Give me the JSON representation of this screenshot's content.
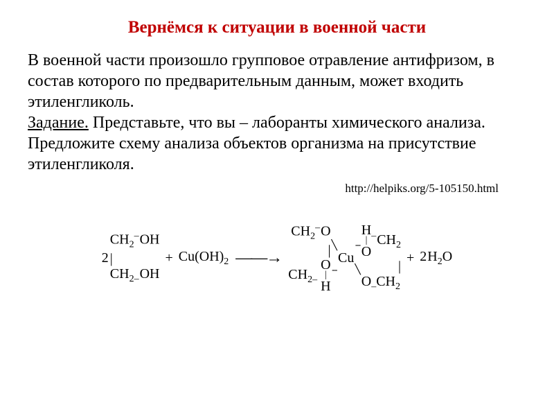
{
  "colors": {
    "title": "#c00000",
    "body": "#000000",
    "background": "#ffffff"
  },
  "fonts": {
    "title_size_pt": 25,
    "body_size_pt": 24,
    "url_size_pt": 17,
    "reaction_size_pt": 20,
    "family": "Times New Roman"
  },
  "title": "Вернёмся к ситуации в военной части",
  "paragraph": {
    "intro": "В военной части произошло групповое отравление антифризом, в состав которого по предварительным данным, может входить этиленгликоль.",
    "task_label": "Задание.",
    "task_text": " Представьте, что вы – лаборанты химического анализа. Предложите схему анализа объектов  организма на присутствие этиленгликоля."
  },
  "url": "http://helpiks.org/5-105150.html",
  "reaction": {
    "type": "chemical-equation",
    "coef_left": "2",
    "glycol_top": "CH",
    "glycol_top_sub": "2",
    "glycol_top_oh": "OH",
    "glycol_bond": "|",
    "glycol_bot": "CH",
    "glycol_bot_sub": "2",
    "glycol_bot_oh": "OH",
    "plus": "+",
    "cuoh2": "Cu(OH)",
    "cuoh2_sub": "2",
    "arrow": "——→",
    "left_lig_top": "CH",
    "left_lig_top_sub": "2",
    "left_lig_top_o": "O",
    "left_lig_bond": "|",
    "left_lig_bot": "CH",
    "left_lig_bot_sub": "2",
    "left_lig_bot_o": "O",
    "h_top": "H",
    "h_bot": "H",
    "cu": "Cu",
    "right_lig_top_o": "O",
    "right_lig_top": "CH",
    "right_lig_top_sub": "2",
    "right_lig_bond": "|",
    "right_lig_bot_o": "O",
    "right_lig_bot": "CH",
    "right_lig_bot_sub": "2",
    "water_coef": "2",
    "water": "H",
    "water_sub": "2",
    "water_o": "O",
    "bond_dash": "–",
    "diag_tl": "╲",
    "diag_bl": "╱",
    "diag_tr": "╱",
    "diag_br": "╲",
    "dashed_tr": "--",
    "dashed_br": "--"
  }
}
